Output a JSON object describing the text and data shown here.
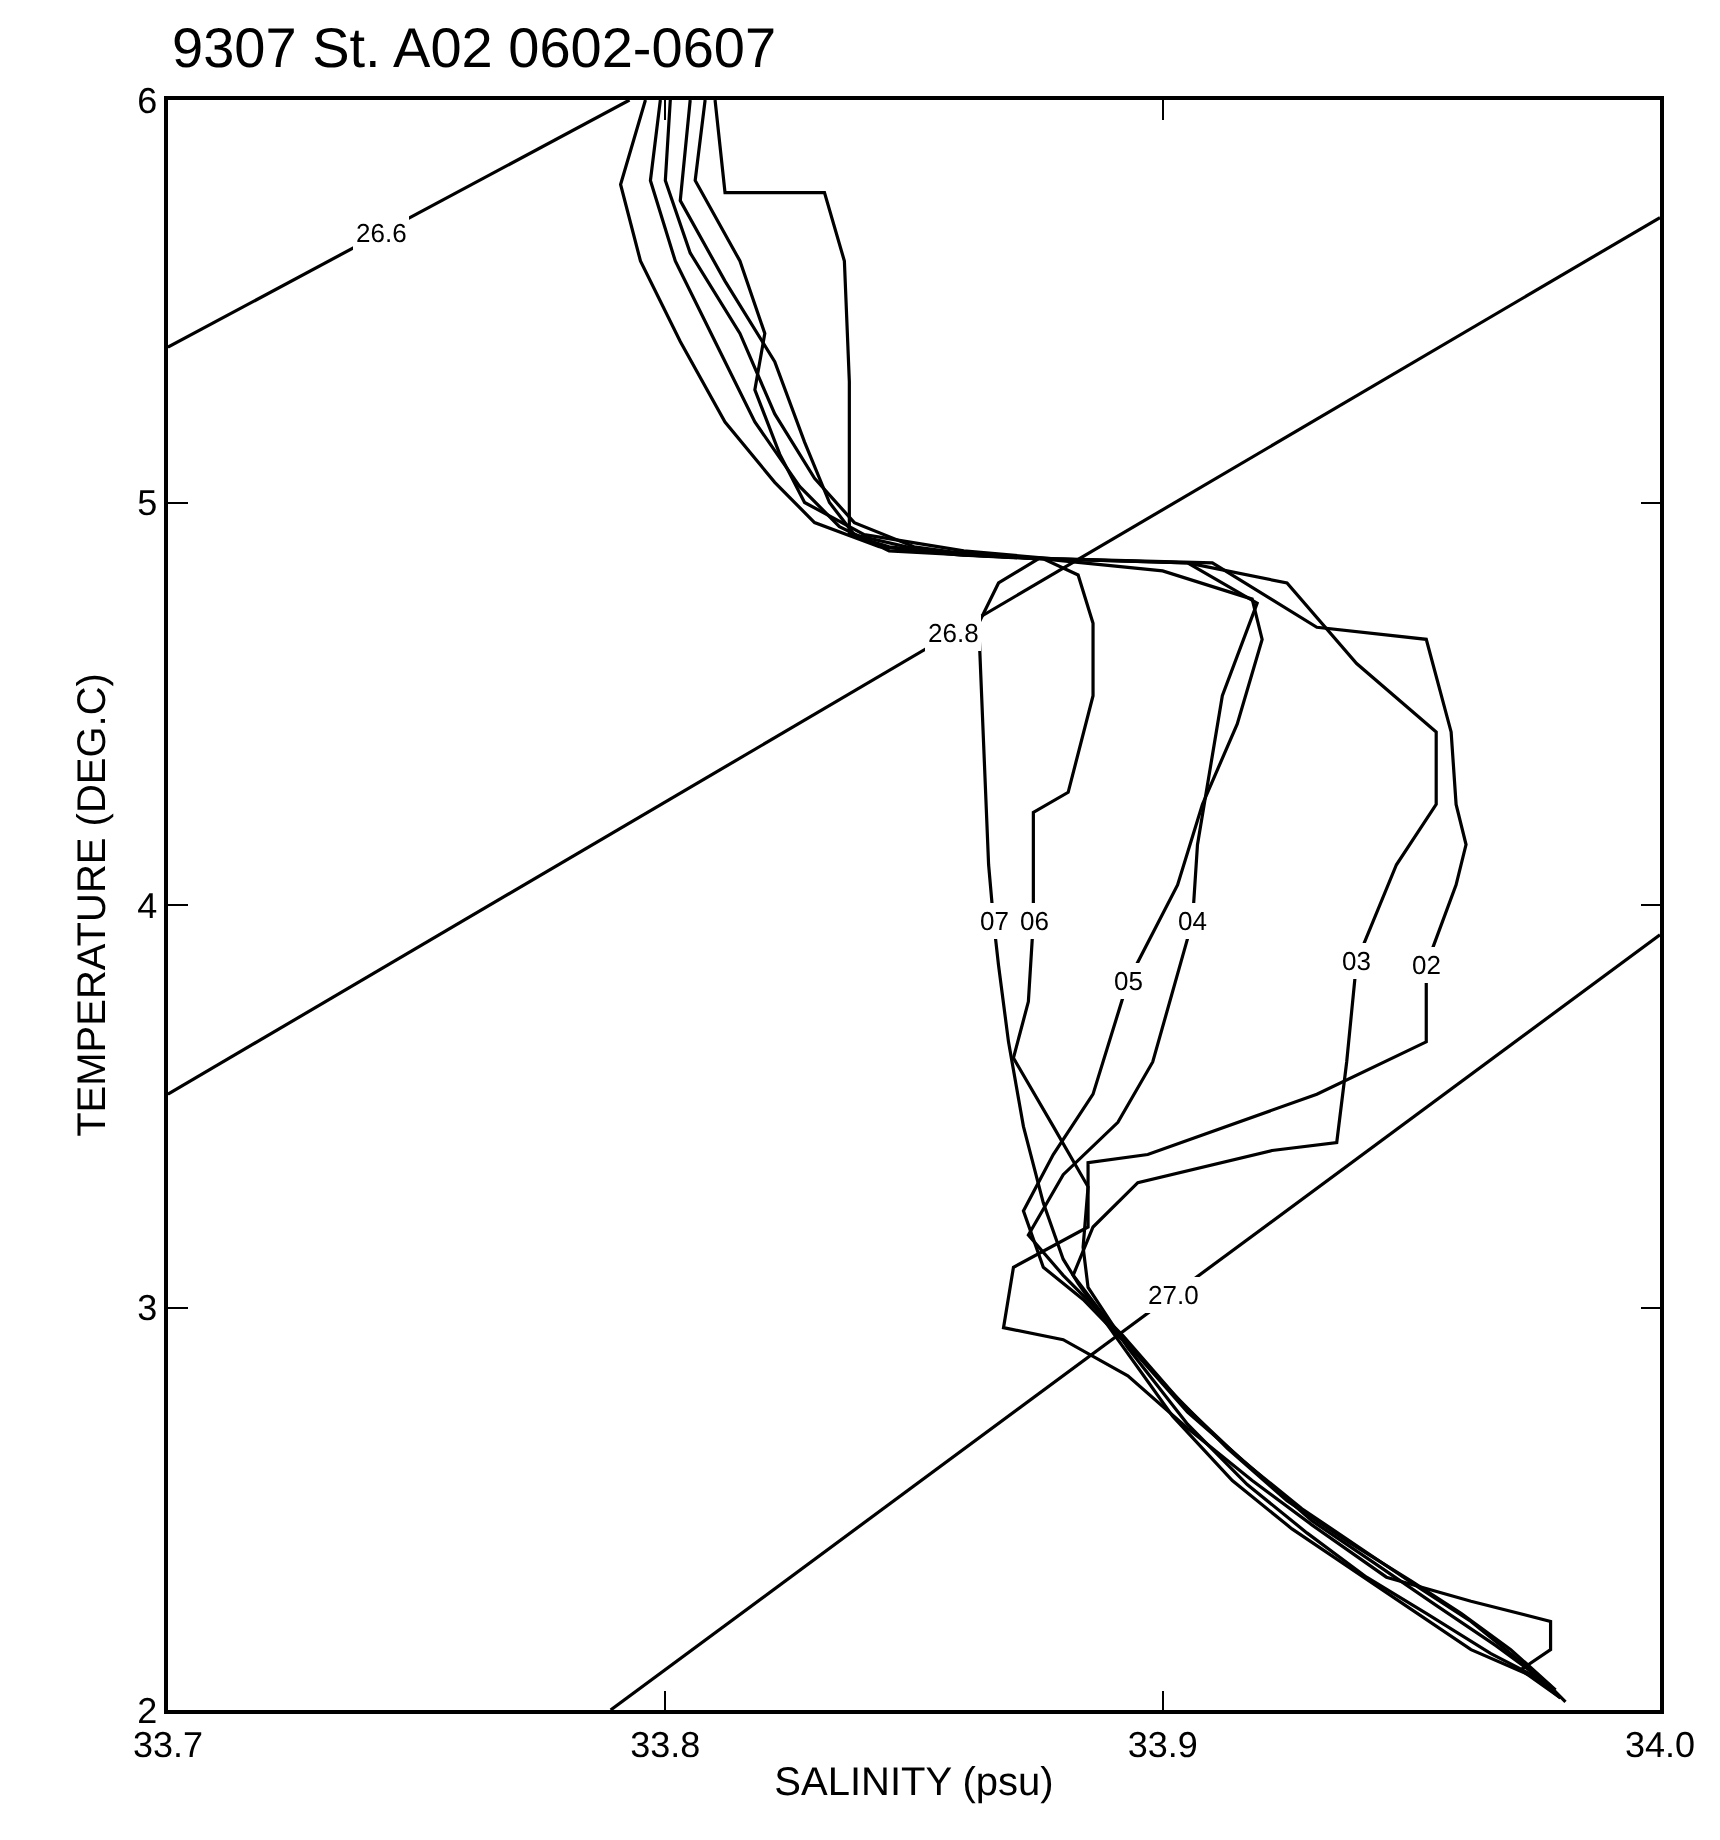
{
  "chart_data": {
    "type": "line",
    "title": "9307 St. A02 0602-0607",
    "xlabel": "SALINITY (psu)",
    "ylabel": "TEMPERATURE (DEG.C)",
    "xlim": [
      33.7,
      34.0
    ],
    "xticks": [
      33.7,
      33.8,
      33.9,
      {
        "value": 34.0,
        "label": "34.0"
      }
    ],
    "ylim": [
      2,
      6
    ],
    "yticks": [
      2,
      3,
      4,
      5,
      6
    ],
    "series": [
      {
        "color": "#000000",
        "x": [
          33.7,
          33.7928
        ],
        "values": [
          5.386,
          6.0
        ]
      },
      {
        "color": "#000000",
        "x": [
          33.7,
          34.0
        ],
        "values": [
          3.53,
          5.708
        ]
      },
      {
        "color": "#000000",
        "x": [
          33.789,
          34.0
        ],
        "values": [
          2.0,
          3.926
        ]
      },
      {
        "color": "#000000",
        "x": [
          33.796,
          33.791,
          33.795,
          33.803,
          33.812,
          33.822,
          33.83,
          33.843,
          33.859,
          33.875,
          33.867,
          33.863,
          33.864,
          33.865,
          33.866,
          33.867,
          33.869,
          33.872,
          33.876,
          33.88,
          33.883,
          33.891,
          33.902,
          33.914,
          33.926,
          33.938,
          33.95,
          33.962,
          33.975,
          33.98
        ],
        "values": [
          6.0,
          5.79,
          5.6,
          5.4,
          5.2,
          5.05,
          4.95,
          4.89,
          4.87,
          4.86,
          4.8,
          4.7,
          4.4,
          4.1,
          3.96,
          3.85,
          3.66,
          3.45,
          3.26,
          3.12,
          3.06,
          2.92,
          2.73,
          2.57,
          2.45,
          2.35,
          2.25,
          2.15,
          2.08,
          2.03
        ]
      },
      {
        "color": "#000000",
        "x": [
          33.799,
          33.797,
          33.802,
          33.81,
          33.818,
          33.827,
          33.835,
          33.845,
          33.86,
          33.876,
          33.883,
          33.886,
          33.886,
          33.881,
          33.874,
          33.874,
          33.873,
          33.87,
          33.878,
          33.885,
          33.884,
          33.885,
          33.893,
          33.905,
          33.917,
          33.929,
          33.941,
          33.953,
          33.966,
          33.977,
          33.981
        ],
        "values": [
          6.0,
          5.8,
          5.6,
          5.4,
          5.2,
          5.04,
          4.94,
          4.88,
          4.87,
          4.86,
          4.82,
          4.7,
          4.52,
          4.28,
          4.23,
          3.96,
          3.76,
          3.62,
          3.45,
          3.3,
          3.15,
          3.05,
          2.9,
          2.71,
          2.56,
          2.44,
          2.33,
          2.24,
          2.14,
          2.07,
          2.02
        ]
      },
      {
        "color": "#000000",
        "x": [
          33.801,
          33.8,
          33.805,
          33.815,
          33.822,
          33.83,
          33.838,
          33.85,
          33.862,
          33.876,
          33.9,
          33.918,
          33.92,
          33.915,
          33.908,
          33.903,
          33.893,
          33.886,
          33.878,
          33.872,
          33.876,
          33.884,
          33.895,
          33.905,
          33.918,
          33.93,
          33.942,
          33.955,
          33.967,
          33.978
        ],
        "values": [
          6.0,
          5.8,
          5.62,
          5.42,
          5.22,
          5.06,
          4.95,
          4.89,
          4.87,
          4.86,
          4.83,
          4.76,
          4.66,
          4.45,
          4.25,
          4.05,
          3.81,
          3.53,
          3.38,
          3.24,
          3.1,
          3.02,
          2.88,
          2.74,
          2.6,
          2.47,
          2.37,
          2.26,
          2.16,
          2.06
        ]
      },
      {
        "color": "#000000",
        "x": [
          33.805,
          33.803,
          33.812,
          33.822,
          33.828,
          33.833,
          33.838,
          33.852,
          33.865,
          33.877,
          33.905,
          33.919,
          33.912,
          33.907,
          33.906,
          33.898,
          33.891,
          33.88,
          33.873,
          33.88,
          33.892,
          33.904,
          33.916,
          33.928,
          33.94,
          33.952,
          33.962,
          33.972,
          33.979
        ],
        "values": [
          6.0,
          5.75,
          5.55,
          5.35,
          5.15,
          5.0,
          4.92,
          4.88,
          4.87,
          4.86,
          4.85,
          4.75,
          4.52,
          4.15,
          3.96,
          3.61,
          3.46,
          3.33,
          3.18,
          3.08,
          2.93,
          2.76,
          2.62,
          2.5,
          2.4,
          2.3,
          2.22,
          2.12,
          2.04
        ]
      },
      {
        "color": "#000000",
        "x": [
          33.808,
          33.806,
          33.815,
          33.82,
          33.818,
          33.823,
          33.828,
          33.84,
          33.86,
          33.878,
          33.905,
          33.925,
          33.939,
          33.955,
          33.955,
          33.947,
          33.939,
          33.937,
          33.935,
          33.922,
          33.895,
          33.886,
          33.882,
          33.89,
          33.901,
          33.913,
          33.925,
          33.937,
          33.95,
          33.96,
          33.97,
          33.979
        ],
        "values": [
          6.0,
          5.8,
          5.6,
          5.42,
          5.28,
          5.12,
          5.0,
          4.92,
          4.88,
          4.86,
          4.85,
          4.8,
          4.6,
          4.43,
          4.25,
          4.1,
          3.86,
          3.61,
          3.41,
          3.39,
          3.31,
          3.2,
          3.08,
          2.95,
          2.8,
          2.65,
          2.52,
          2.42,
          2.32,
          2.24,
          2.15,
          2.05
        ]
      },
      {
        "color": "#000000",
        "x": [
          33.81,
          33.812,
          33.832,
          33.836,
          33.837,
          33.837,
          33.845,
          33.86,
          33.879,
          33.91,
          33.931,
          33.953,
          33.958,
          33.959,
          33.961,
          33.959,
          33.953,
          33.953,
          33.931,
          33.897,
          33.885,
          33.885,
          33.87,
          33.868,
          33.88,
          33.893,
          33.905,
          33.918,
          33.93,
          33.945,
          33.962,
          33.978,
          33.978,
          33.972,
          33.98
        ],
        "values": [
          6.0,
          5.77,
          5.77,
          5.6,
          5.3,
          4.92,
          4.89,
          4.87,
          4.86,
          4.85,
          4.69,
          4.66,
          4.43,
          4.25,
          4.15,
          4.05,
          3.85,
          3.66,
          3.53,
          3.38,
          3.36,
          3.2,
          3.1,
          2.95,
          2.92,
          2.83,
          2.7,
          2.57,
          2.46,
          2.33,
          2.27,
          2.22,
          2.15,
          2.1,
          2.03
        ]
      }
    ],
    "annotations": [
      {
        "text": "26.6",
        "x": 33.743,
        "y": 5.67
      },
      {
        "text": "26.8",
        "x": 33.858,
        "y": 4.677
      },
      {
        "text": "27.0",
        "x": 33.902,
        "y": 3.031
      },
      {
        "text": "07",
        "x": 33.866,
        "y": 3.96
      },
      {
        "text": "06",
        "x": 33.874,
        "y": 3.96
      },
      {
        "text": "05",
        "x": 33.893,
        "y": 3.81
      },
      {
        "text": "04",
        "x": 33.906,
        "y": 3.96
      },
      {
        "text": "03",
        "x": 33.939,
        "y": 3.86
      },
      {
        "text": "02",
        "x": 33.953,
        "y": 3.85
      }
    ]
  }
}
